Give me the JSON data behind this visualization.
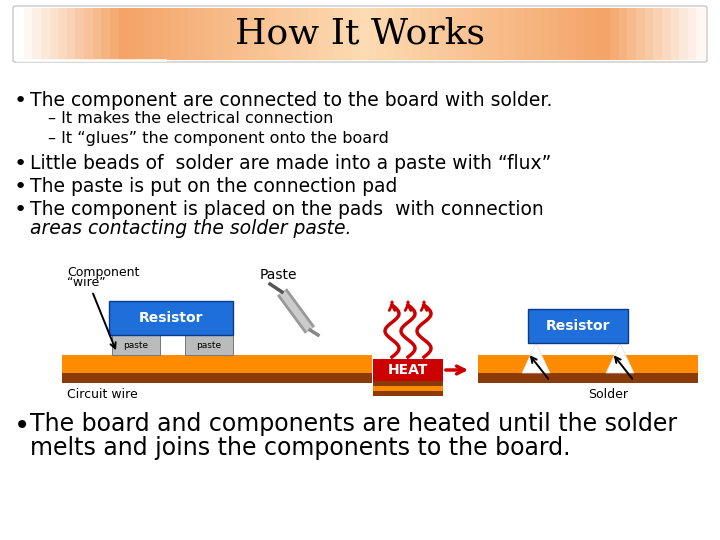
{
  "title": "How It Works",
  "bg_color": "#FFFFFF",
  "title_bg": "#F4A468",
  "title_bg_light": "#FDDBB4",
  "bullet1": "The component are connected to the board with solder.",
  "sub1a": "– It makes the electrical connection",
  "sub1b": "– It “glues” the component onto the board",
  "bullet2": "Little beads of  solder are made into a paste with “flux”",
  "bullet3": "The paste is put on the connection pad",
  "bullet4_l1": "The component is placed on the pads  with connection",
  "bullet4_l2": "areas contacting the solder paste.",
  "bullet5_l1": "The board and components are heated until the solder",
  "bullet5_l2": "melts and joins the components to the board.",
  "font_color": "#000000",
  "title_size": 26,
  "bullet_size": 13.5,
  "sub_size": 11.5,
  "bullet5_size": 17
}
